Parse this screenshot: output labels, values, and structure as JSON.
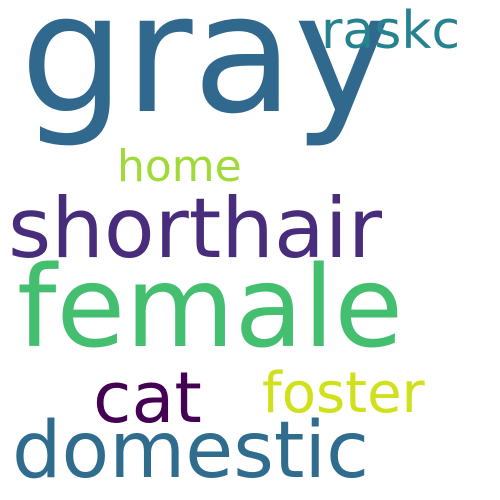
{
  "words": [
    {
      "text": "gray",
      "color": "#31688e"
    },
    {
      "text": "raskc",
      "color": "#26828e"
    },
    {
      "text": "home",
      "color": "#a0da39"
    },
    {
      "text": "shorthair",
      "color": "#472d7b"
    },
    {
      "text": "female",
      "color": "#44bf70"
    },
    {
      "text": "cat",
      "color": "#440154"
    },
    {
      "text": "foster",
      "color": "#d0e11c"
    },
    {
      "text": "domestic",
      "color": "#2f6c8e"
    }
  ]
}
